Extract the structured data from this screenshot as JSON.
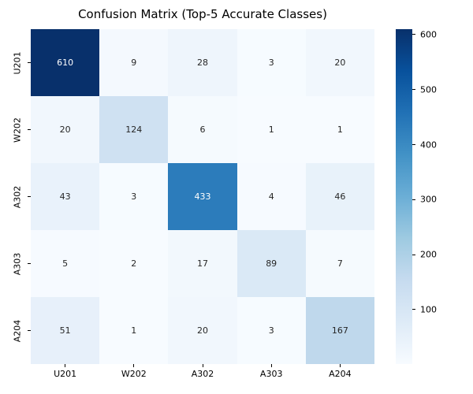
{
  "chart_data": {
    "type": "heatmap",
    "title": "Confusion Matrix (Top-5 Accurate Classes)",
    "x_labels": [
      "U201",
      "W202",
      "A302",
      "A303",
      "A204"
    ],
    "y_labels": [
      "U201",
      "W202",
      "A302",
      "A303",
      "A204"
    ],
    "values": [
      [
        610,
        9,
        28,
        3,
        20
      ],
      [
        20,
        124,
        6,
        1,
        1
      ],
      [
        43,
        3,
        433,
        4,
        46
      ],
      [
        5,
        2,
        17,
        89,
        7
      ],
      [
        51,
        1,
        20,
        3,
        167
      ]
    ],
    "vmin": 1,
    "vmax": 610,
    "colorbar_ticks": [
      100,
      200,
      300,
      400,
      500,
      600
    ],
    "colormap_name": "Blues",
    "colormap_anchors": [
      "#f7fbff",
      "#deebf7",
      "#c6dbef",
      "#9ecae1",
      "#6baed6",
      "#4292c6",
      "#2171b5",
      "#08519c",
      "#08306b"
    ],
    "annotation_color_dark": "#262626",
    "annotation_color_light": "#ffffff",
    "legend_position": "right",
    "grid": false
  }
}
